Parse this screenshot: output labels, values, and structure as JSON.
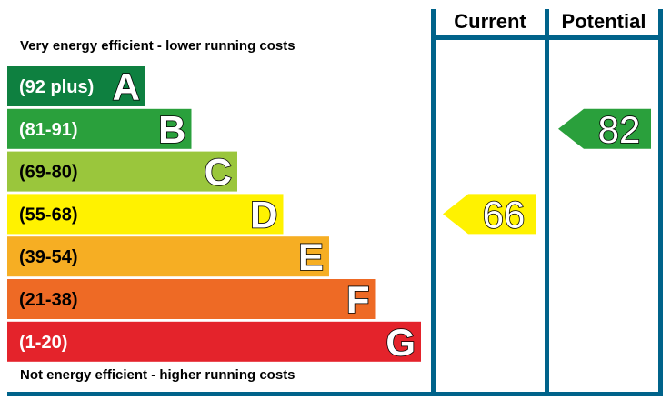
{
  "chart_data": {
    "type": "bar",
    "title": "",
    "top_caption": "Very energy efficient - lower running costs",
    "bottom_caption": "Not energy efficient - higher running costs",
    "columns": [
      "Current",
      "Potential"
    ],
    "bands": [
      {
        "letter": "A",
        "range": "(92 plus)",
        "color": "#0e8040"
      },
      {
        "letter": "B",
        "range": "(81-91)",
        "color": "#2aa03c"
      },
      {
        "letter": "C",
        "range": "(69-80)",
        "color": "#9ac63c"
      },
      {
        "letter": "D",
        "range": "(55-68)",
        "color": "#fff200"
      },
      {
        "letter": "E",
        "range": "(39-54)",
        "color": "#f6ae23"
      },
      {
        "letter": "F",
        "range": "(21-38)",
        "color": "#ee6a25"
      },
      {
        "letter": "G",
        "range": "(1-20)",
        "color": "#e4232b"
      }
    ],
    "ratings": {
      "current": {
        "value": "66",
        "band": "D",
        "color": "#fff200"
      },
      "potential": {
        "value": "82",
        "band": "B",
        "color": "#2aa03c"
      }
    },
    "frame_color": "#00638a"
  }
}
